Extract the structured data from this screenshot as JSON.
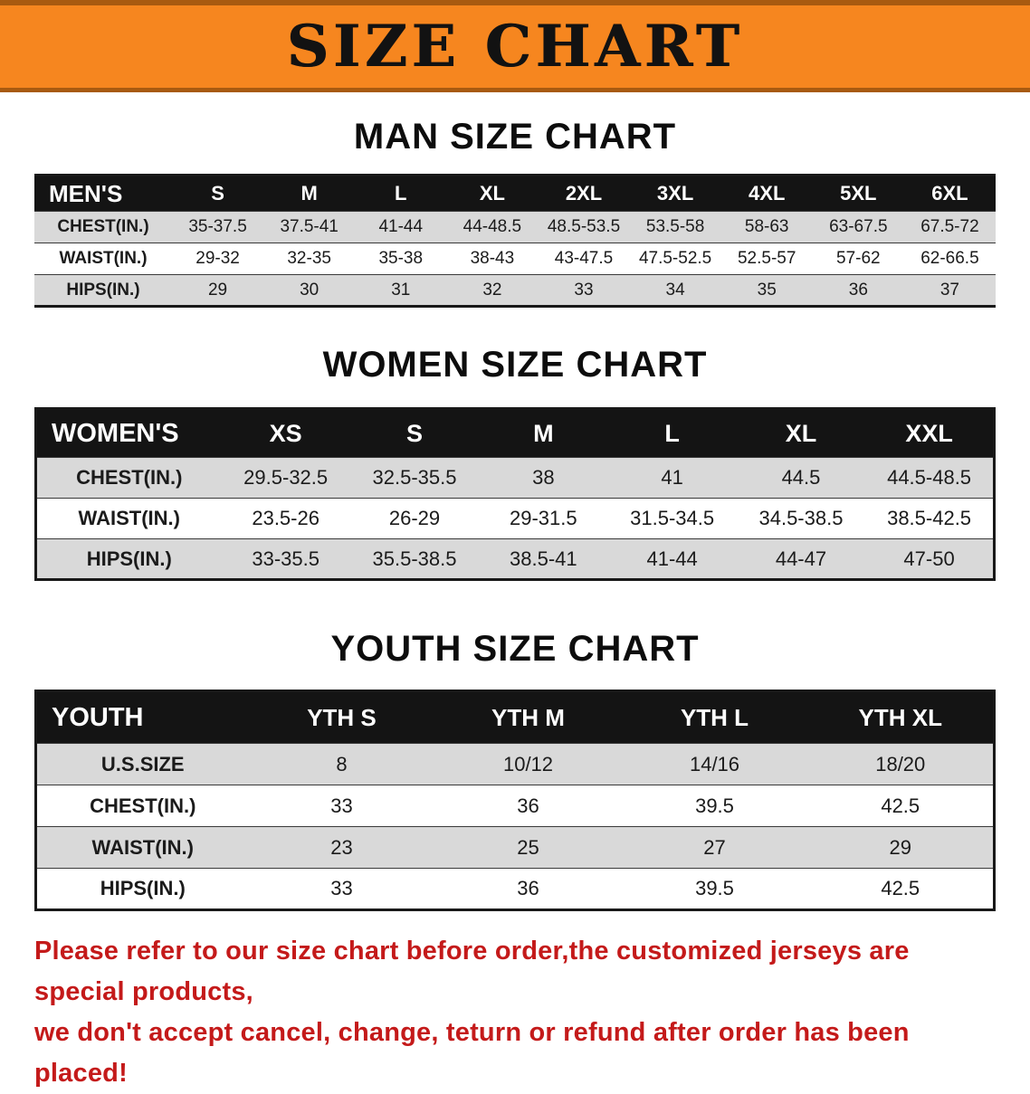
{
  "banner": {
    "title": "SIZE CHART"
  },
  "colors": {
    "banner_orange": "#f6861f",
    "banner_edge": "#a85a10",
    "table_header_black": "#141414",
    "row_stripe_gray": "#d9d9d9",
    "disclaimer_red": "#c41a1a"
  },
  "sections": [
    {
      "heading": "MAN SIZE CHART",
      "corner_label": "MEN'S",
      "columns": [
        "S",
        "M",
        "L",
        "XL",
        "2XL",
        "3XL",
        "4XL",
        "5XL",
        "6XL"
      ],
      "rows": [
        {
          "label": "CHEST(IN.)",
          "values": [
            "35-37.5",
            "37.5-41",
            "41-44",
            "44-48.5",
            "48.5-53.5",
            "53.5-58",
            "58-63",
            "63-67.5",
            "67.5-72"
          ]
        },
        {
          "label": "WAIST(IN.)",
          "values": [
            "29-32",
            "32-35",
            "35-38",
            "38-43",
            "43-47.5",
            "47.5-52.5",
            "52.5-57",
            "57-62",
            "62-66.5"
          ]
        },
        {
          "label": "HIPS(IN.)",
          "values": [
            "29",
            "30",
            "31",
            "32",
            "33",
            "34",
            "35",
            "36",
            "37"
          ]
        }
      ]
    },
    {
      "heading": "WOMEN SIZE CHART",
      "corner_label": "WOMEN'S",
      "columns": [
        "XS",
        "S",
        "M",
        "L",
        "XL",
        "XXL"
      ],
      "rows": [
        {
          "label": "CHEST(IN.)",
          "values": [
            "29.5-32.5",
            "32.5-35.5",
            "38",
            "41",
            "44.5",
            "44.5-48.5"
          ]
        },
        {
          "label": "WAIST(IN.)",
          "values": [
            "23.5-26",
            "26-29",
            "29-31.5",
            "31.5-34.5",
            "34.5-38.5",
            "38.5-42.5"
          ]
        },
        {
          "label": "HIPS(IN.)",
          "values": [
            "33-35.5",
            "35.5-38.5",
            "38.5-41",
            "41-44",
            "44-47",
            "47-50"
          ]
        }
      ]
    },
    {
      "heading": "YOUTH SIZE CHART",
      "corner_label": "YOUTH",
      "columns": [
        "YTH S",
        "YTH M",
        "YTH L",
        "YTH XL"
      ],
      "rows": [
        {
          "label": "U.S.SIZE",
          "values": [
            "8",
            "10/12",
            "14/16",
            "18/20"
          ]
        },
        {
          "label": "CHEST(IN.)",
          "values": [
            "33",
            "36",
            "39.5",
            "42.5"
          ]
        },
        {
          "label": "WAIST(IN.)",
          "values": [
            "23",
            "25",
            "27",
            "29"
          ]
        },
        {
          "label": "HIPS(IN.)",
          "values": [
            "33",
            "36",
            "39.5",
            "42.5"
          ]
        }
      ]
    }
  ],
  "disclaimer": {
    "line1": "Please refer to our size chart before order,the customized jerseys are special products,",
    "line2": "we don't accept cancel, change, teturn or refund after order has been placed!"
  }
}
